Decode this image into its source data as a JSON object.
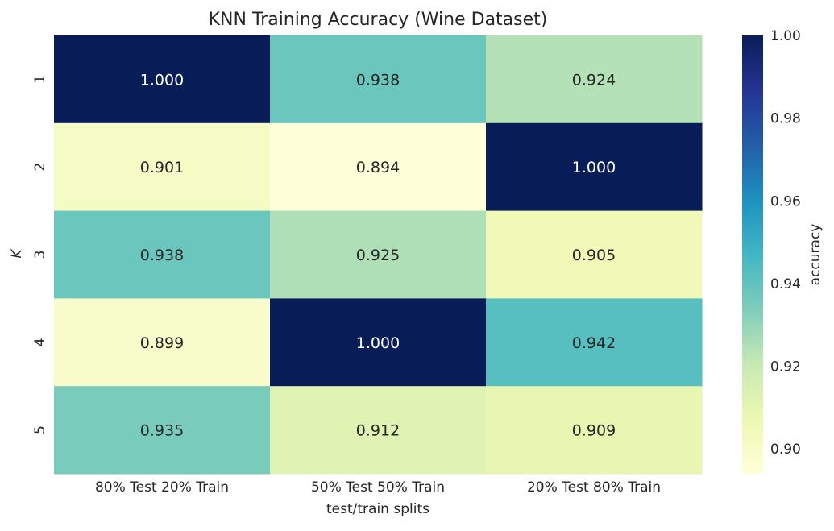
{
  "chart_data": {
    "type": "heatmap",
    "title": "KNN Training Accuracy (Wine Dataset)",
    "xlabel": "test/train splits",
    "ylabel": "K",
    "x_categories": [
      "80% Test 20% Train",
      "50% Test 50% Train",
      "20% Test 80% Train"
    ],
    "y_categories": [
      "1",
      "2",
      "3",
      "4",
      "5"
    ],
    "values": [
      [
        1.0,
        0.938,
        0.924
      ],
      [
        0.901,
        0.894,
        1.0
      ],
      [
        0.938,
        0.925,
        0.905
      ],
      [
        0.899,
        1.0,
        0.942
      ],
      [
        0.935,
        0.912,
        0.909
      ]
    ],
    "value_labels": [
      [
        "1.000",
        "0.938",
        "0.924"
      ],
      [
        "0.901",
        "0.894",
        "1.000"
      ],
      [
        "0.938",
        "0.925",
        "0.905"
      ],
      [
        "0.899",
        "1.000",
        "0.942"
      ],
      [
        "0.935",
        "0.912",
        "0.909"
      ]
    ],
    "colorbar": {
      "label": "accuracy",
      "ticks": [
        "0.90",
        "0.92",
        "0.94",
        "0.96",
        "0.98",
        "1.00"
      ],
      "range": [
        0.894,
        1.0
      ]
    },
    "colormap": [
      "#ffffd9",
      "#edf8b1",
      "#c7e9b4",
      "#7fcdbb",
      "#41b6c4",
      "#1d91c0",
      "#225ea8",
      "#253494",
      "#081d58"
    ]
  }
}
